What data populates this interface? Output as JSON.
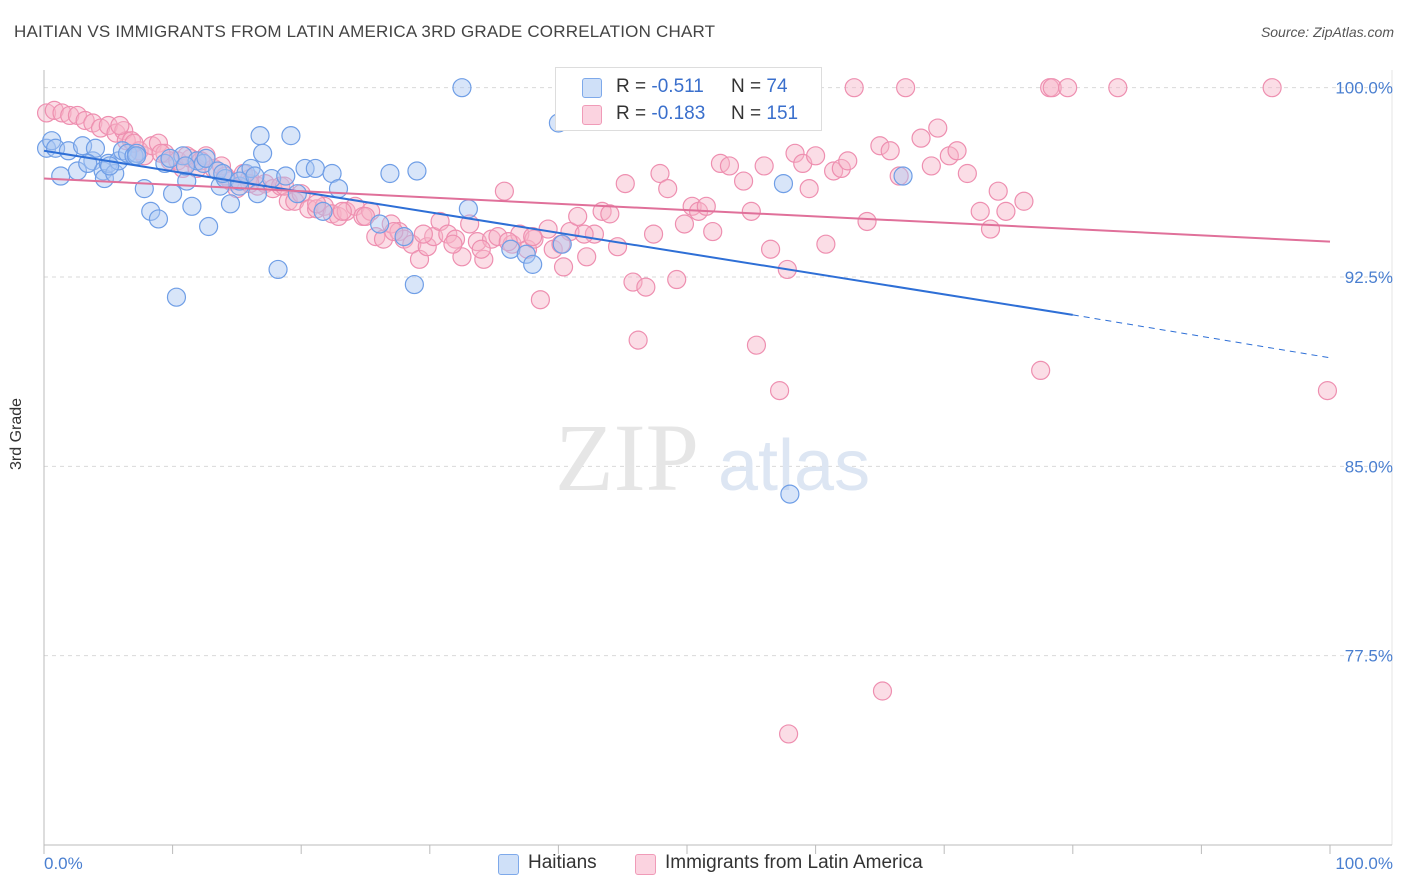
{
  "title": "HAITIAN VS IMMIGRANTS FROM LATIN AMERICA 3RD GRADE CORRELATION CHART",
  "source": "Source: ZipAtlas.com",
  "watermark": {
    "zip": "ZIP",
    "atlas": "atlas"
  },
  "legend": {
    "rows": [
      {
        "r_label": "R =",
        "r_value": "-0.511",
        "n_label": "N =",
        "n_value": "74",
        "color": "#a9c6f2"
      },
      {
        "r_label": "R =",
        "r_value": "-0.183",
        "n_label": "N =",
        "n_value": "151",
        "color": "#f6b3c8"
      }
    ]
  },
  "bottom_legend": [
    {
      "label": "Haitians",
      "color": "#a9c6f2"
    },
    {
      "label": "Immigrants from Latin America",
      "color": "#f6b3c8"
    }
  ],
  "chart_data": {
    "type": "scatter",
    "title": "HAITIAN VS IMMIGRANTS FROM LATIN AMERICA 3RD GRADE CORRELATION CHART",
    "xlabel": "",
    "ylabel": "3rd Grade",
    "xlim": [
      0,
      100
    ],
    "ylim": [
      70.0,
      100.7
    ],
    "x_tick_labels": [
      "0.0%",
      "100.0%"
    ],
    "y_ticks": [
      100.0,
      92.5,
      85.0,
      77.5
    ],
    "y_tick_labels": [
      "100.0%",
      "92.5%",
      "85.0%",
      "77.5%"
    ],
    "grid": true,
    "legend_position": "top-center",
    "series": [
      {
        "name": "Haitians",
        "color": "#6f9ee6",
        "fill": "#a9c6f2",
        "trend": {
          "x0": 0,
          "y0": 97.5,
          "x1": 80,
          "y1": 91.0,
          "dash_to_x": 100,
          "dash_to_y": 89.3,
          "color": "#2e6fd6"
        },
        "points": [
          [
            0.2,
            97.6
          ],
          [
            0.6,
            97.9
          ],
          [
            0.9,
            97.6
          ],
          [
            1.3,
            96.5
          ],
          [
            1.9,
            97.5
          ],
          [
            2.6,
            96.7
          ],
          [
            3.0,
            97.7
          ],
          [
            3.8,
            97.1
          ],
          [
            4.0,
            97.6
          ],
          [
            4.6,
            96.7
          ],
          [
            4.7,
            96.4
          ],
          [
            5.0,
            97.0
          ],
          [
            5.5,
            96.6
          ],
          [
            5.8,
            97.1
          ],
          [
            6.1,
            97.5
          ],
          [
            6.5,
            97.4
          ],
          [
            7.0,
            97.3
          ],
          [
            7.2,
            97.4
          ],
          [
            7.8,
            96.0
          ],
          [
            8.3,
            95.1
          ],
          [
            8.9,
            94.8
          ],
          [
            9.4,
            97.0
          ],
          [
            10.0,
            95.8
          ],
          [
            10.3,
            91.7
          ],
          [
            10.8,
            97.3
          ],
          [
            11.1,
            96.3
          ],
          [
            11.5,
            95.3
          ],
          [
            11.9,
            97.1
          ],
          [
            12.4,
            97.0
          ],
          [
            12.6,
            97.2
          ],
          [
            12.8,
            94.5
          ],
          [
            13.5,
            96.7
          ],
          [
            13.7,
            96.1
          ],
          [
            14.1,
            96.4
          ],
          [
            14.5,
            95.4
          ],
          [
            15.2,
            96.1
          ],
          [
            15.7,
            96.6
          ],
          [
            16.1,
            96.8
          ],
          [
            16.6,
            95.8
          ],
          [
            16.8,
            98.1
          ],
          [
            17.0,
            97.4
          ],
          [
            17.7,
            96.4
          ],
          [
            18.2,
            92.8
          ],
          [
            18.8,
            96.5
          ],
          [
            19.2,
            98.1
          ],
          [
            19.7,
            95.8
          ],
          [
            20.3,
            96.8
          ],
          [
            21.1,
            96.8
          ],
          [
            21.7,
            95.1
          ],
          [
            22.4,
            96.6
          ],
          [
            22.9,
            96.0
          ],
          [
            26.1,
            94.6
          ],
          [
            26.9,
            96.6
          ],
          [
            28.0,
            94.1
          ],
          [
            29.0,
            96.7
          ],
          [
            28.8,
            92.2
          ],
          [
            33.0,
            95.2
          ],
          [
            36.3,
            93.6
          ],
          [
            37.5,
            93.4
          ],
          [
            38.0,
            93.0
          ],
          [
            40.0,
            98.6
          ],
          [
            40.3,
            93.8
          ],
          [
            32.5,
            100.0
          ],
          [
            57.5,
            96.2
          ],
          [
            58.0,
            83.9
          ],
          [
            66.8,
            96.5
          ],
          [
            9.8,
            97.2
          ],
          [
            7.2,
            97.3
          ],
          [
            5.1,
            96.9
          ],
          [
            3.4,
            97.0
          ],
          [
            15.2,
            96.3
          ],
          [
            16.4,
            96.5
          ],
          [
            13.9,
            96.6
          ],
          [
            11.0,
            96.9
          ]
        ]
      },
      {
        "name": "Immigrants from Latin America",
        "color": "#ee8fb0",
        "fill": "#f6b3c8",
        "trend": {
          "x0": 0,
          "y0": 96.4,
          "x1": 100,
          "y1": 93.9,
          "color": "#e0709a"
        },
        "points": [
          [
            0.2,
            99.0
          ],
          [
            0.8,
            99.1
          ],
          [
            1.4,
            99.0
          ],
          [
            2.0,
            98.9
          ],
          [
            2.6,
            98.9
          ],
          [
            3.2,
            98.7
          ],
          [
            3.8,
            98.6
          ],
          [
            4.4,
            98.4
          ],
          [
            5.0,
            98.5
          ],
          [
            5.6,
            98.2
          ],
          [
            6.2,
            98.3
          ],
          [
            6.4,
            97.9
          ],
          [
            6.8,
            97.9
          ],
          [
            7.4,
            97.5
          ],
          [
            7.8,
            97.3
          ],
          [
            8.4,
            97.7
          ],
          [
            8.9,
            97.8
          ],
          [
            9.4,
            97.4
          ],
          [
            9.8,
            97.1
          ],
          [
            10.4,
            97.1
          ],
          [
            10.8,
            96.8
          ],
          [
            11.4,
            97.2
          ],
          [
            11.9,
            96.8
          ],
          [
            12.6,
            97.3
          ],
          [
            13.2,
            96.8
          ],
          [
            13.8,
            96.9
          ],
          [
            14.5,
            96.3
          ],
          [
            15.0,
            96.0
          ],
          [
            15.5,
            96.6
          ],
          [
            16.0,
            96.4
          ],
          [
            16.6,
            96.1
          ],
          [
            17.2,
            96.2
          ],
          [
            17.8,
            96.0
          ],
          [
            18.4,
            96.1
          ],
          [
            19.0,
            95.5
          ],
          [
            19.5,
            95.5
          ],
          [
            20.0,
            95.8
          ],
          [
            20.6,
            95.2
          ],
          [
            21.2,
            95.2
          ],
          [
            21.8,
            95.3
          ],
          [
            22.4,
            95.0
          ],
          [
            22.9,
            94.9
          ],
          [
            23.5,
            95.1
          ],
          [
            24.2,
            95.3
          ],
          [
            24.8,
            94.9
          ],
          [
            25.4,
            95.1
          ],
          [
            25.8,
            94.1
          ],
          [
            26.4,
            94.0
          ],
          [
            27.0,
            94.6
          ],
          [
            27.6,
            94.3
          ],
          [
            28.0,
            94.0
          ],
          [
            28.6,
            93.8
          ],
          [
            29.2,
            93.2
          ],
          [
            29.8,
            93.7
          ],
          [
            30.3,
            94.1
          ],
          [
            30.8,
            94.7
          ],
          [
            31.4,
            94.2
          ],
          [
            32.0,
            94.0
          ],
          [
            32.5,
            93.3
          ],
          [
            33.1,
            94.6
          ],
          [
            33.7,
            93.9
          ],
          [
            34.2,
            93.2
          ],
          [
            34.8,
            94.0
          ],
          [
            35.3,
            94.1
          ],
          [
            35.8,
            95.9
          ],
          [
            36.4,
            93.8
          ],
          [
            37.0,
            94.2
          ],
          [
            37.6,
            93.6
          ],
          [
            38.1,
            94.0
          ],
          [
            38.6,
            91.6
          ],
          [
            39.2,
            94.4
          ],
          [
            39.6,
            93.6
          ],
          [
            40.4,
            92.9
          ],
          [
            40.9,
            94.3
          ],
          [
            41.5,
            94.9
          ],
          [
            42.2,
            93.3
          ],
          [
            42.8,
            94.2
          ],
          [
            43.4,
            95.1
          ],
          [
            44.0,
            95.0
          ],
          [
            44.6,
            93.7
          ],
          [
            45.2,
            96.2
          ],
          [
            45.8,
            92.3
          ],
          [
            46.2,
            90.0
          ],
          [
            46.8,
            92.1
          ],
          [
            47.4,
            94.2
          ],
          [
            47.9,
            96.6
          ],
          [
            48.5,
            96.0
          ],
          [
            49.2,
            92.4
          ],
          [
            49.8,
            94.6
          ],
          [
            50.4,
            95.3
          ],
          [
            50.9,
            95.1
          ],
          [
            51.5,
            95.3
          ],
          [
            52.0,
            94.3
          ],
          [
            52.6,
            97.0
          ],
          [
            53.3,
            96.9
          ],
          [
            53.8,
            98.7
          ],
          [
            54.4,
            96.3
          ],
          [
            55.0,
            95.1
          ],
          [
            55.4,
            89.8
          ],
          [
            56.0,
            96.9
          ],
          [
            56.5,
            93.6
          ],
          [
            57.2,
            88.0
          ],
          [
            57.8,
            92.8
          ],
          [
            58.4,
            97.4
          ],
          [
            59.0,
            97.0
          ],
          [
            59.5,
            96.0
          ],
          [
            60.0,
            97.3
          ],
          [
            60.8,
            93.8
          ],
          [
            61.4,
            96.7
          ],
          [
            62.0,
            96.8
          ],
          [
            62.5,
            97.1
          ],
          [
            63.0,
            100.0
          ],
          [
            64.0,
            94.7
          ],
          [
            65.0,
            97.7
          ],
          [
            65.8,
            97.5
          ],
          [
            66.5,
            96.5
          ],
          [
            67.0,
            100.0
          ],
          [
            68.2,
            98.0
          ],
          [
            69.0,
            96.9
          ],
          [
            69.5,
            98.4
          ],
          [
            70.4,
            97.3
          ],
          [
            71.0,
            97.5
          ],
          [
            71.8,
            96.6
          ],
          [
            72.8,
            95.1
          ],
          [
            73.6,
            94.4
          ],
          [
            74.2,
            95.9
          ],
          [
            74.8,
            95.1
          ],
          [
            76.2,
            95.5
          ],
          [
            77.5,
            88.8
          ],
          [
            78.2,
            100.0
          ],
          [
            78.4,
            100.0
          ],
          [
            79.6,
            100.0
          ],
          [
            83.5,
            100.0
          ],
          [
            95.5,
            100.0
          ],
          [
            99.8,
            88.0
          ],
          [
            65.2,
            76.1
          ],
          [
            57.9,
            74.4
          ],
          [
            5.9,
            98.5
          ],
          [
            7.0,
            97.8
          ],
          [
            9.1,
            97.4
          ],
          [
            11.1,
            97.3
          ],
          [
            12.2,
            97.1
          ],
          [
            14.1,
            96.5
          ],
          [
            16.0,
            96.2
          ],
          [
            18.7,
            96.1
          ],
          [
            21.2,
            95.4
          ],
          [
            23.2,
            95.1
          ],
          [
            25.0,
            94.9
          ],
          [
            27.2,
            94.3
          ],
          [
            29.5,
            94.2
          ],
          [
            31.8,
            93.8
          ],
          [
            34.0,
            93.6
          ],
          [
            36.1,
            93.9
          ],
          [
            38.0,
            94.1
          ],
          [
            40.2,
            93.8
          ],
          [
            42.0,
            94.2
          ]
        ]
      }
    ]
  }
}
